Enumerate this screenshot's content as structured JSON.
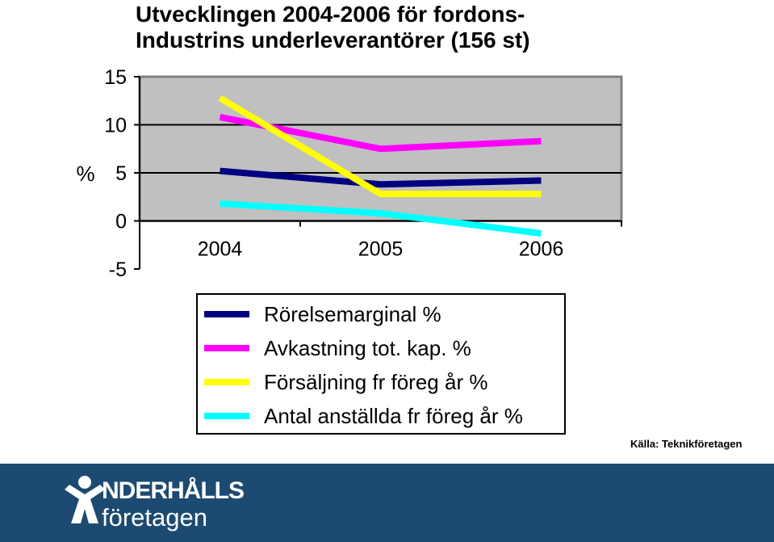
{
  "title_lines": [
    "Utvecklingen  2004-2006 för fordons-",
    "Industrins underleverantörer  (156 st)"
  ],
  "source": "Källa: Teknikföretagen",
  "logo": {
    "line1": "NDERHÅLLS",
    "line2": "företagen"
  },
  "colors": {
    "plot_bg": "#c0c0c0",
    "footer_bg": "#1d4a70"
  },
  "chart_data": {
    "type": "line",
    "title": "Utvecklingen  2004-2006 för fordons- Industrins underleverantörer  (156 st)",
    "ylabel": "%",
    "xlabel": "",
    "categories": [
      "2004",
      "2005",
      "2006"
    ],
    "ylim": [
      -5,
      15
    ],
    "yticks": [
      15,
      10,
      5,
      0,
      -5
    ],
    "grid": true,
    "legend_position": "bottom",
    "series": [
      {
        "name": "Rörelsemarginal %",
        "color": "#000080",
        "values": [
          5.2,
          3.8,
          4.2
        ]
      },
      {
        "name": "Avkastning tot. kap. %",
        "color": "#ff00ff",
        "values": [
          10.8,
          7.5,
          8.3
        ]
      },
      {
        "name": "Försäljning fr föreg år %",
        "color": "#ffff00",
        "values": [
          12.8,
          2.8,
          2.8
        ]
      },
      {
        "name": "Antal anställda fr föreg år %",
        "color": "#00ffff",
        "values": [
          1.8,
          0.8,
          -1.3
        ]
      }
    ]
  }
}
